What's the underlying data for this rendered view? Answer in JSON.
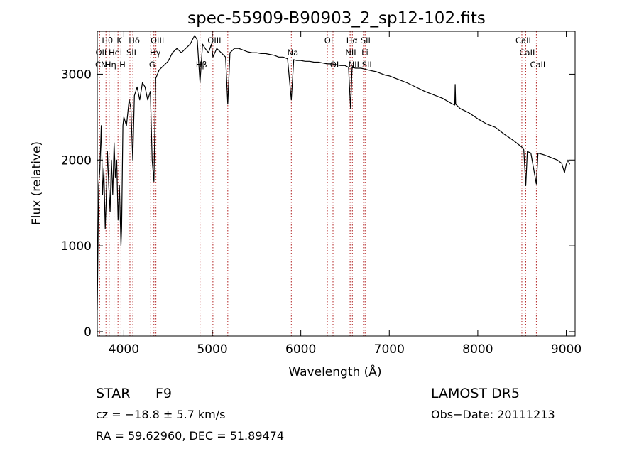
{
  "chart_data": {
    "type": "line",
    "title": "spec-55909-B90903_2_sp12-102.fits",
    "xlabel": "Wavelength (Å)",
    "ylabel": "Flux (relative)",
    "xlim": [
      3700,
      9100
    ],
    "ylim": [
      -50,
      3500
    ],
    "xticks": [
      4000,
      5000,
      6000,
      7000,
      8000,
      9000
    ],
    "yticks": [
      0,
      1000,
      2000,
      3000
    ],
    "grid": false,
    "series": [
      {
        "points": [
          [
            3700,
            250
          ],
          [
            3715,
            1700
          ],
          [
            3730,
            1900
          ],
          [
            3745,
            2400
          ],
          [
            3760,
            1600
          ],
          [
            3775,
            1900
          ],
          [
            3790,
            1200
          ],
          [
            3800,
            1500
          ],
          [
            3815,
            2100
          ],
          [
            3830,
            1700
          ],
          [
            3845,
            1400
          ],
          [
            3860,
            2000
          ],
          [
            3875,
            1600
          ],
          [
            3890,
            2200
          ],
          [
            3905,
            1800
          ],
          [
            3920,
            2000
          ],
          [
            3935,
            1300
          ],
          [
            3950,
            1700
          ],
          [
            3968,
            1000
          ],
          [
            3975,
            1200
          ],
          [
            3990,
            2400
          ],
          [
            4000,
            2500
          ],
          [
            4030,
            2400
          ],
          [
            4060,
            2700
          ],
          [
            4080,
            2600
          ],
          [
            4101,
            2000
          ],
          [
            4120,
            2750
          ],
          [
            4150,
            2850
          ],
          [
            4180,
            2700
          ],
          [
            4210,
            2900
          ],
          [
            4240,
            2850
          ],
          [
            4270,
            2700
          ],
          [
            4300,
            2800
          ],
          [
            4320,
            2000
          ],
          [
            4340,
            1750
          ],
          [
            4360,
            2950
          ],
          [
            4400,
            3050
          ],
          [
            4450,
            3100
          ],
          [
            4500,
            3150
          ],
          [
            4550,
            3250
          ],
          [
            4600,
            3300
          ],
          [
            4650,
            3250
          ],
          [
            4700,
            3300
          ],
          [
            4750,
            3350
          ],
          [
            4800,
            3450
          ],
          [
            4830,
            3400
          ],
          [
            4861,
            2900
          ],
          [
            4890,
            3350
          ],
          [
            4920,
            3300
          ],
          [
            4957,
            3250
          ],
          [
            4990,
            3350
          ],
          [
            5007,
            3200
          ],
          [
            5050,
            3300
          ],
          [
            5100,
            3250
          ],
          [
            5150,
            3200
          ],
          [
            5175,
            2650
          ],
          [
            5200,
            3250
          ],
          [
            5250,
            3300
          ],
          [
            5300,
            3300
          ],
          [
            5350,
            3280
          ],
          [
            5400,
            3260
          ],
          [
            5450,
            3250
          ],
          [
            5500,
            3250
          ],
          [
            5550,
            3240
          ],
          [
            5600,
            3240
          ],
          [
            5650,
            3230
          ],
          [
            5700,
            3220
          ],
          [
            5750,
            3200
          ],
          [
            5800,
            3200
          ],
          [
            5850,
            3180
          ],
          [
            5893,
            2700
          ],
          [
            5920,
            3170
          ],
          [
            5950,
            3160
          ],
          [
            6000,
            3160
          ],
          [
            6050,
            3150
          ],
          [
            6100,
            3150
          ],
          [
            6150,
            3140
          ],
          [
            6200,
            3140
          ],
          [
            6250,
            3130
          ],
          [
            6300,
            3120
          ],
          [
            6350,
            3120
          ],
          [
            6400,
            3110
          ],
          [
            6450,
            3100
          ],
          [
            6500,
            3100
          ],
          [
            6540,
            3080
          ],
          [
            6563,
            2600
          ],
          [
            6580,
            3080
          ],
          [
            6620,
            3070
          ],
          [
            6680,
            3070
          ],
          [
            6720,
            3060
          ],
          [
            6760,
            3050
          ],
          [
            6800,
            3040
          ],
          [
            6850,
            3030
          ],
          [
            6900,
            3010
          ],
          [
            6950,
            2990
          ],
          [
            7000,
            2980
          ],
          [
            7100,
            2940
          ],
          [
            7200,
            2900
          ],
          [
            7300,
            2850
          ],
          [
            7400,
            2800
          ],
          [
            7500,
            2760
          ],
          [
            7600,
            2720
          ],
          [
            7700,
            2660
          ],
          [
            7740,
            2640
          ],
          [
            7745,
            2880
          ],
          [
            7750,
            2650
          ],
          [
            7800,
            2600
          ],
          [
            7900,
            2550
          ],
          [
            8000,
            2480
          ],
          [
            8100,
            2420
          ],
          [
            8200,
            2380
          ],
          [
            8300,
            2300
          ],
          [
            8400,
            2230
          ],
          [
            8498,
            2150
          ],
          [
            8520,
            2120
          ],
          [
            8542,
            1700
          ],
          [
            8560,
            2100
          ],
          [
            8600,
            2080
          ],
          [
            8662,
            1720
          ],
          [
            8680,
            2080
          ],
          [
            8750,
            2060
          ],
          [
            8800,
            2040
          ],
          [
            8850,
            2020
          ],
          [
            8900,
            2000
          ],
          [
            8950,
            1960
          ],
          [
            8980,
            1850
          ],
          [
            9000,
            1950
          ],
          [
            9020,
            2000
          ],
          [
            9040,
            1950
          ]
        ]
      }
    ],
    "emission_lines": [
      {
        "label": "Hθ",
        "wavelength": 3798
      },
      {
        "label": "K",
        "wavelength": 3934
      },
      {
        "label": "Hδ",
        "wavelength": 4102
      },
      {
        "label": "OII",
        "wavelength": 3727
      },
      {
        "label": "HeI",
        "wavelength": 3889
      },
      {
        "label": "SII",
        "wavelength": 4069
      },
      {
        "label": "CN",
        "wavelength": 3727
      },
      {
        "label": "Hη",
        "wavelength": 3835
      },
      {
        "label": "H",
        "wavelength": 3968
      },
      {
        "label": "OIII",
        "wavelength": 4363
      },
      {
        "label": "Hγ",
        "wavelength": 4340
      },
      {
        "label": "G",
        "wavelength": 4304
      },
      {
        "label": "OIII",
        "wavelength": 5007
      },
      {
        "label": "Hβ",
        "wavelength": 4861
      },
      {
        "label": "Na",
        "wavelength": 5893
      },
      {
        "label": "OI",
        "wavelength": 6300
      },
      {
        "label": "OI",
        "wavelength": 6364
      },
      {
        "label": "Hα",
        "wavelength": 6563
      },
      {
        "label": "NII",
        "wavelength": 6548
      },
      {
        "label": "NII",
        "wavelength": 6583
      },
      {
        "label": "SII",
        "wavelength": 6716
      },
      {
        "label": "Li",
        "wavelength": 6708
      },
      {
        "label": "SII",
        "wavelength": 6731
      },
      {
        "label": "CaII",
        "wavelength": 8498
      },
      {
        "label": "CaII",
        "wavelength": 8542
      },
      {
        "label": "CaII",
        "wavelength": 8662
      }
    ],
    "marker_lines": [
      3727,
      3798,
      3835,
      3889,
      3934,
      3968,
      4069,
      4102,
      4304,
      4340,
      4363,
      4861,
      5007,
      5175,
      5893,
      6300,
      6364,
      6548,
      6563,
      6583,
      6708,
      6716,
      6731,
      8498,
      8542,
      8662
    ]
  },
  "info": {
    "object_class": "STAR",
    "subclass": "F9",
    "survey": "LAMOST DR5",
    "redshift": "cz = −18.8 ± 5.7 km/s",
    "obs_date": "Obs−Date: 20111213",
    "coords": "RA =  59.62960, DEC =  51.89474"
  },
  "colors": {
    "spectrum": "#000000",
    "marker_lines": "#b22222",
    "axes": "#000000"
  }
}
